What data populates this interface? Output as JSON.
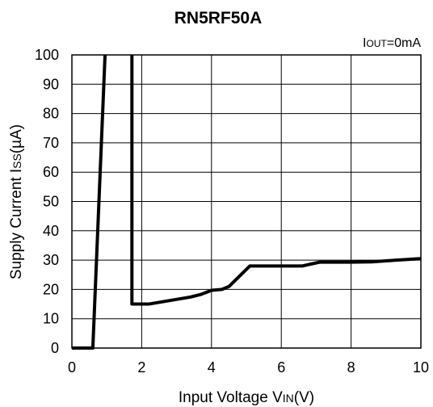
{
  "chart_data": {
    "type": "line",
    "title": "RN5RF50A",
    "condition": {
      "main": "I",
      "sub": "OUT",
      "rest": "=0mA"
    },
    "xlabel": {
      "before": "Input Voltage V",
      "sub": "IN",
      "after": "(V)"
    },
    "ylabel": {
      "before": "Supply Current I",
      "sub": "SS",
      "after": "(µA)"
    },
    "xlim": [
      0,
      10
    ],
    "ylim": [
      0,
      100
    ],
    "x_ticks": [
      0,
      2,
      4,
      6,
      8,
      10
    ],
    "y_ticks": [
      0,
      10,
      20,
      30,
      40,
      50,
      60,
      70,
      80,
      90,
      100
    ],
    "grid": true,
    "series": [
      {
        "x": [
          0,
          0.6,
          0.95,
          0.95,
          1.72,
          1.72,
          2.2,
          2.8,
          3.4,
          3.7,
          4.0,
          4.3,
          4.5,
          5.1,
          6.0,
          6.6,
          7.1,
          8.0,
          8.6,
          9.3,
          10.0
        ],
        "y": [
          0,
          0,
          100,
          null,
          100,
          15,
          15,
          16.2,
          17.4,
          18.3,
          19.7,
          20,
          21,
          28,
          28,
          28,
          29.3,
          29.3,
          29.4,
          30,
          30.5
        ]
      }
    ]
  }
}
